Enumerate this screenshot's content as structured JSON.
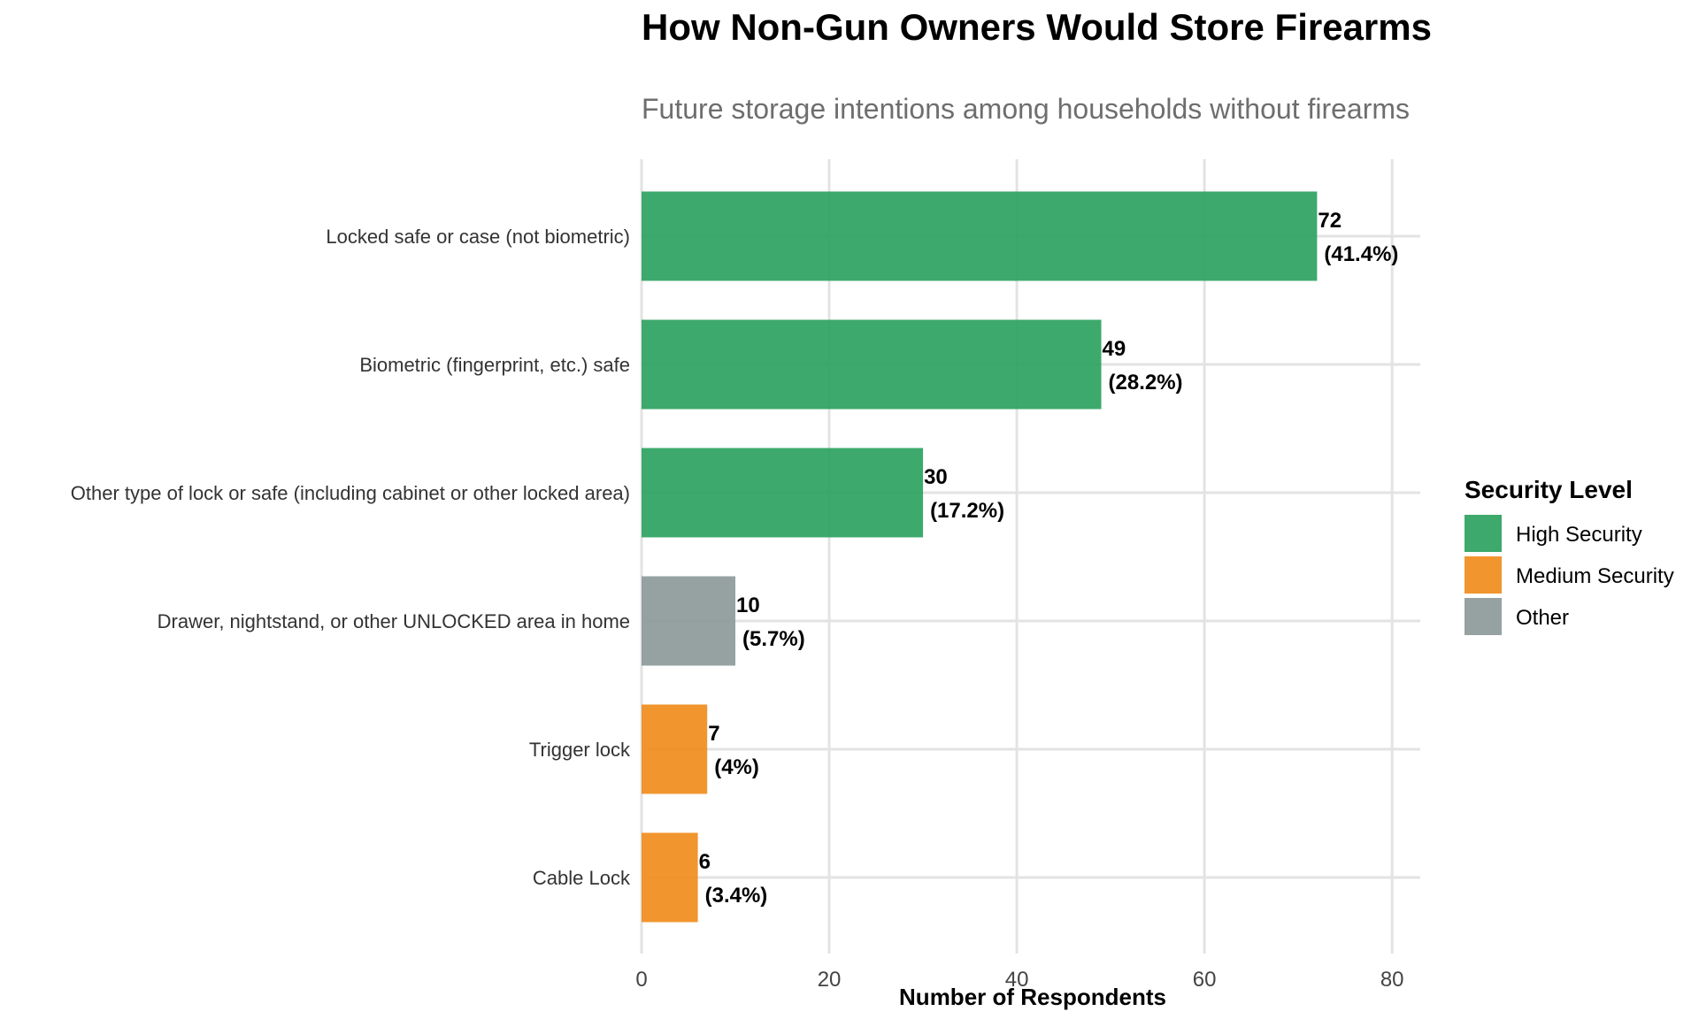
{
  "chart_data": {
    "type": "bar",
    "orientation": "horizontal",
    "title": "How Non-Gun Owners Would Store Firearms",
    "subtitle": "Future storage intentions among households without firearms",
    "xlabel": "Number of Respondents",
    "ylabel": "",
    "xlim": [
      0,
      83
    ],
    "xticks": [
      0,
      20,
      40,
      60,
      80
    ],
    "grid": true,
    "categories": [
      "Locked safe or case (not biometric)",
      "Biometric (fingerprint, etc.) safe",
      "Other type of lock or safe (including cabinet or other locked area)",
      "Drawer, nightstand, or other UNLOCKED area in home",
      "Trigger lock",
      "Cable Lock"
    ],
    "values": [
      72,
      49,
      30,
      10,
      7,
      6
    ],
    "percent_labels": [
      "(41.4%)",
      "(28.2%)",
      "(17.2%)",
      "(5.7%)",
      "(4%)",
      "(3.4%)"
    ],
    "groups": [
      "High Security",
      "High Security",
      "High Security",
      "Other",
      "Medium Security",
      "Medium Security"
    ],
    "legend": {
      "title": "Security Level",
      "position": "right",
      "entries": [
        {
          "name": "High Security",
          "color": "#2ca25f"
        },
        {
          "name": "Medium Security",
          "color": "#f08c1c"
        },
        {
          "name": "Other",
          "color": "#8c9a99"
        }
      ]
    }
  }
}
